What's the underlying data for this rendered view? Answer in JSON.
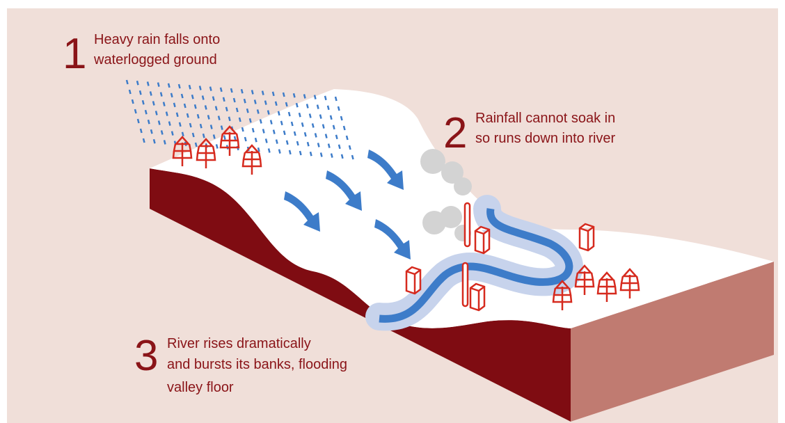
{
  "steps": [
    {
      "number": "1",
      "lines": [
        "Heavy rain falls onto",
        "waterlogged ground"
      ]
    },
    {
      "number": "2",
      "lines": [
        "Rainfall cannot soak in",
        "so runs down into river"
      ]
    },
    {
      "number": "3",
      "lines": [
        "River rises dramatically",
        "and bursts its banks, flooding",
        "valley floor"
      ]
    }
  ]
}
